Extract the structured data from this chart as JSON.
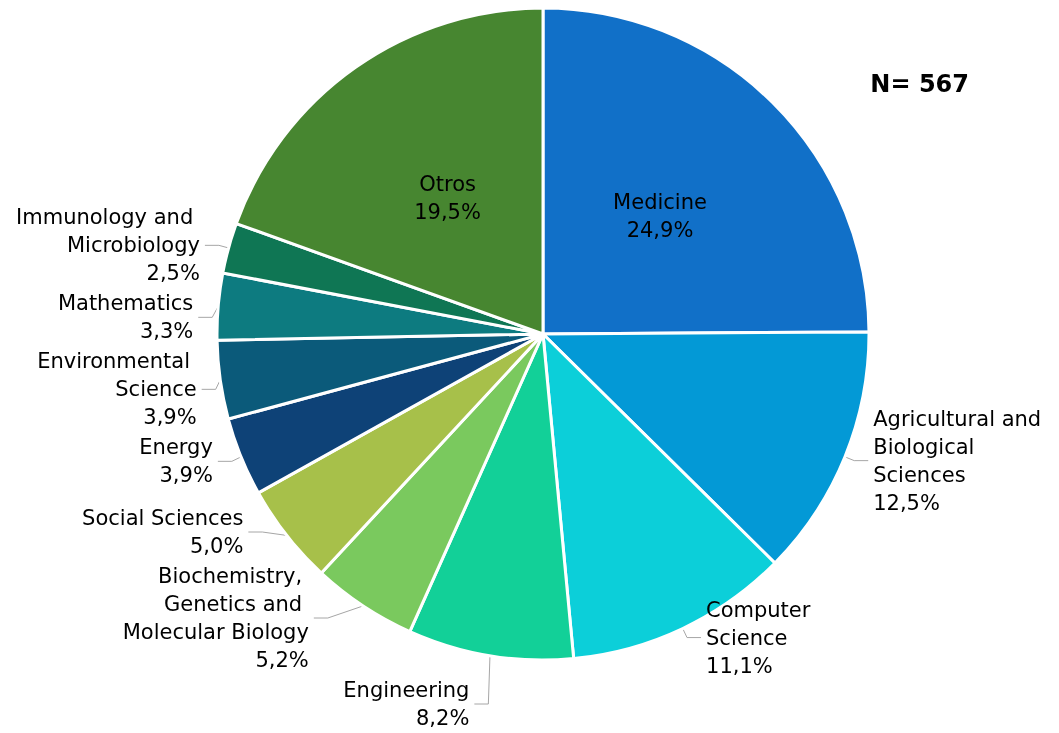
{
  "chart_data": {
    "type": "pie",
    "categories": [
      "Medicine",
      "Agricultural and Biological Sciences",
      "Computer Science",
      "Engineering",
      "Biochemistry, Genetics and Molecular Biology",
      "Social Sciences",
      "Energy",
      "Environmental Science",
      "Mathematics",
      "Immunology and Microbiology",
      "Otros"
    ],
    "values": [
      24.9,
      12.5,
      11.1,
      8.2,
      5.2,
      5.0,
      3.9,
      3.9,
      3.3,
      2.5,
      19.5
    ],
    "value_labels": [
      "24,9%",
      "12,5%",
      "11,1%",
      "8,2%",
      "5,2%",
      "5,0%",
      "3,9%",
      "3,9%",
      "3,3%",
      "2,5%",
      "19,5%"
    ],
    "colors": [
      "#1170c8",
      "#0399d6",
      "#0ccfd9",
      "#12d098",
      "#7ac95e",
      "#a7c04a",
      "#0e4277",
      "#0b5a7a",
      "#0d7b80",
      "#0f7654",
      "#478630"
    ],
    "annotations": [
      "N= 567"
    ]
  }
}
